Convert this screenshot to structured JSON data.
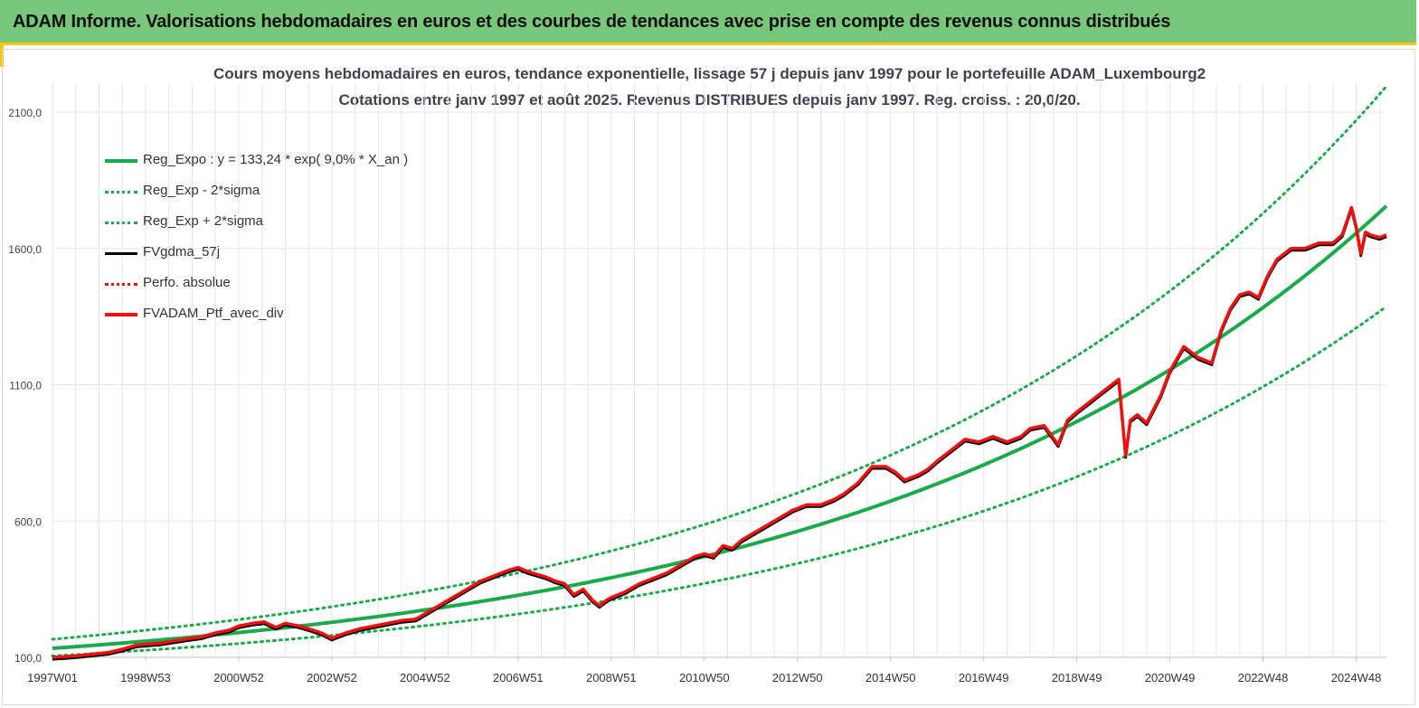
{
  "header": {
    "title": "ADAM Informe. Valorisations hebdomadaires en euros et des courbes de tendances avec prise en compte des revenus connus distribués"
  },
  "chart_data": {
    "type": "line",
    "title": "Cours moyens hebdomadaires  en euros, tendance exponentielle, lissage 57 j depuis janv 1997 pour le portefeuille ADAM_Luxembourg2",
    "subtitle": "Cotations entre janv 1997 et août 2025. Revenus DISTRIBUES depuis janv 1997. Reg. croiss. : 20,0/20.",
    "xlabel": "",
    "ylabel": "",
    "ylim": [
      100,
      2100
    ],
    "xlim": [
      1997.0,
      2025.65
    ],
    "yticks": [
      "100,0",
      "600,0",
      "1100,0",
      "1600,0",
      "2100,0"
    ],
    "ytick_values": [
      100,
      600,
      1100,
      1600,
      2100
    ],
    "xticks": [
      "1997W01",
      "1998W53",
      "2000W52",
      "2002W52",
      "2004W52",
      "2006W51",
      "2008W51",
      "2010W50",
      "2012W50",
      "2014W50",
      "2016W49",
      "2018W49",
      "2020W49",
      "2022W48",
      "2024W48"
    ],
    "xtick_values": [
      1997.0,
      1999.0,
      2001.0,
      2003.0,
      2005.0,
      2007.0,
      2009.0,
      2011.0,
      2013.0,
      2015.0,
      2017.0,
      2019.0,
      2021.0,
      2023.0,
      2025.0
    ],
    "grid": "vertical and horizontal",
    "legend_position": "top-left",
    "regression": {
      "a": 133.24,
      "rate": 0.09
    },
    "series": [
      {
        "name": "Reg_Expo : y = 133,24 * exp( 9,0% *  X_an )",
        "color": "#1aaa4b",
        "style": "solid",
        "kind": "reg",
        "factor": 1.0
      },
      {
        "name": "Reg_Exp - 2*sigma",
        "color": "#1aaa4b",
        "style": "dotted",
        "kind": "reg",
        "factor": 0.79
      },
      {
        "name": "Reg_Exp + 2*sigma",
        "color": "#1aaa4b",
        "style": "dotted",
        "kind": "reg",
        "factor": 1.25
      },
      {
        "name": "FVgdma_57j",
        "color": "#000000",
        "style": "solid",
        "kind": "data"
      },
      {
        "name": "Perfo. absolue",
        "color": "#ee1111",
        "style": "dotted",
        "kind": "none"
      },
      {
        "name": "FVADAM_Ptf_avec_div",
        "color": "#ee1111",
        "style": "solid",
        "kind": "data"
      }
    ],
    "x": [
      1997.0,
      1997.3,
      1997.6,
      1997.9,
      1998.2,
      1998.5,
      1998.8,
      1999.0,
      1999.3,
      1999.6,
      1999.9,
      2000.2,
      2000.5,
      2000.8,
      2001.0,
      2001.3,
      2001.55,
      2001.8,
      2002.0,
      2002.3,
      2002.6,
      2002.8,
      2003.0,
      2003.3,
      2003.6,
      2003.9,
      2004.2,
      2004.5,
      2004.8,
      2005.0,
      2005.3,
      2005.6,
      2005.9,
      2006.2,
      2006.5,
      2006.8,
      2007.0,
      2007.2,
      2007.4,
      2007.6,
      2007.8,
      2008.0,
      2008.2,
      2008.4,
      2008.6,
      2008.75,
      2008.9,
      2009.0,
      2009.3,
      2009.6,
      2009.9,
      2010.2,
      2010.5,
      2010.8,
      2011.0,
      2011.2,
      2011.4,
      2011.6,
      2011.8,
      2012.0,
      2012.3,
      2012.6,
      2012.9,
      2013.2,
      2013.5,
      2013.8,
      2014.0,
      2014.3,
      2014.6,
      2014.9,
      2015.1,
      2015.3,
      2015.6,
      2015.8,
      2016.0,
      2016.3,
      2016.6,
      2016.9,
      2017.2,
      2017.5,
      2017.8,
      2018.0,
      2018.3,
      2018.6,
      2018.8,
      2019.0,
      2019.3,
      2019.6,
      2019.9,
      2020.05,
      2020.15,
      2020.3,
      2020.5,
      2020.8,
      2021.0,
      2021.3,
      2021.6,
      2021.9,
      2022.1,
      2022.3,
      2022.5,
      2022.7,
      2022.9,
      2023.1,
      2023.3,
      2023.6,
      2023.9,
      2024.2,
      2024.5,
      2024.7,
      2024.9,
      2025.0,
      2025.1,
      2025.2,
      2025.3,
      2025.5,
      2025.65
    ],
    "values": [
      100,
      103,
      107,
      113,
      118,
      130,
      145,
      148,
      152,
      160,
      168,
      175,
      190,
      200,
      215,
      225,
      230,
      210,
      225,
      215,
      200,
      188,
      170,
      190,
      205,
      215,
      225,
      235,
      240,
      260,
      290,
      320,
      350,
      380,
      400,
      420,
      430,
      415,
      405,
      395,
      380,
      370,
      330,
      350,
      310,
      290,
      310,
      320,
      340,
      370,
      390,
      410,
      440,
      470,
      480,
      470,
      510,
      500,
      530,
      550,
      580,
      610,
      640,
      660,
      660,
      680,
      700,
      740,
      800,
      800,
      780,
      750,
      770,
      790,
      820,
      860,
      900,
      890,
      910,
      890,
      910,
      940,
      950,
      880,
      970,
      1000,
      1040,
      1080,
      1120,
      840,
      970,
      990,
      960,
      1060,
      1150,
      1240,
      1200,
      1180,
      1300,
      1380,
      1430,
      1440,
      1420,
      1500,
      1560,
      1600,
      1600,
      1620,
      1620,
      1650,
      1750,
      1680,
      1580,
      1660,
      1650,
      1640,
      1650
    ]
  }
}
